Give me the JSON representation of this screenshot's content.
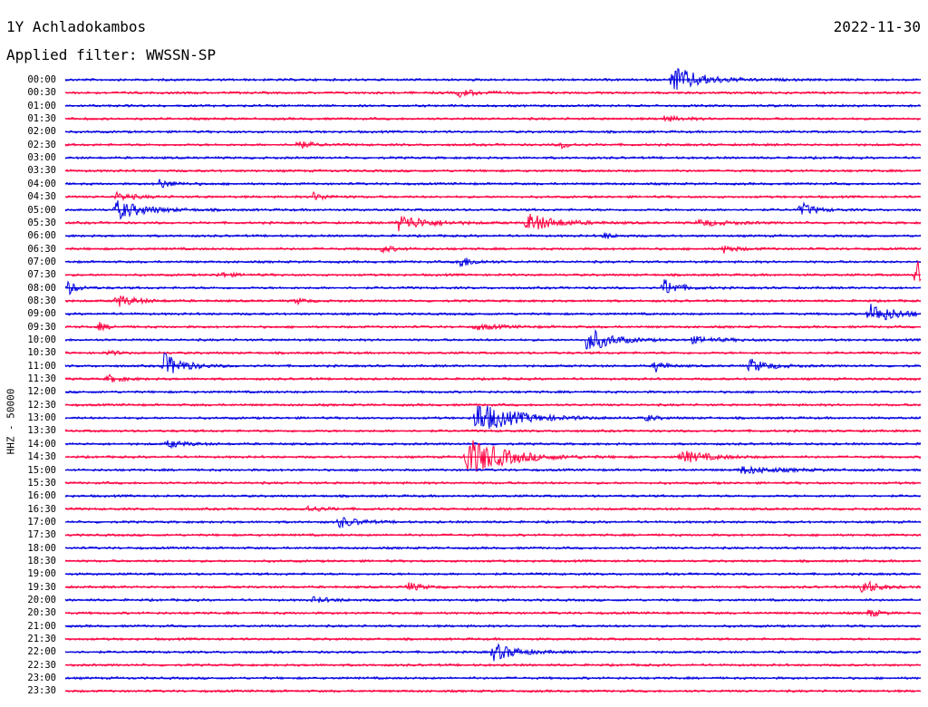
{
  "header": {
    "station": "1Y Achladokambos",
    "date": "2022-11-30",
    "filter": "Applied filter: WWSSN-SP"
  },
  "chart_data": {
    "type": "line",
    "title": "1Y Achladokambos",
    "ylabel": "HHZ - 50000",
    "series_colors": [
      "#0000e0",
      "#ff0040"
    ],
    "rows": [
      "00:00",
      "00:30",
      "01:00",
      "01:30",
      "02:00",
      "02:30",
      "03:00",
      "03:30",
      "04:00",
      "04:30",
      "05:00",
      "05:30",
      "06:00",
      "06:30",
      "07:00",
      "07:30",
      "08:00",
      "08:30",
      "09:00",
      "09:30",
      "10:00",
      "10:30",
      "11:00",
      "11:30",
      "12:00",
      "12:30",
      "13:00",
      "13:30",
      "14:00",
      "14:30",
      "15:00",
      "15:30",
      "16:00",
      "16:30",
      "17:00",
      "17:30",
      "18:00",
      "18:30",
      "19:00",
      "19:30",
      "20:00",
      "20:30",
      "21:00",
      "21:30",
      "22:00",
      "22:30",
      "23:00",
      "23:30"
    ],
    "events": [
      {
        "row": "00:00",
        "pos": 0.71,
        "amp": 2.2,
        "dur": 0.03
      },
      {
        "row": "00:30",
        "pos": 0.46,
        "amp": 0.6,
        "dur": 0.02
      },
      {
        "row": "01:30",
        "pos": 0.7,
        "amp": 0.4,
        "dur": 0.02
      },
      {
        "row": "02:30",
        "pos": 0.27,
        "amp": 0.7,
        "dur": 0.015
      },
      {
        "row": "02:30",
        "pos": 0.58,
        "amp": 0.5,
        "dur": 0.01
      },
      {
        "row": "04:00",
        "pos": 0.11,
        "amp": 0.7,
        "dur": 0.015
      },
      {
        "row": "04:30",
        "pos": 0.06,
        "amp": 0.6,
        "dur": 0.02
      },
      {
        "row": "04:30",
        "pos": 0.29,
        "amp": 0.6,
        "dur": 0.015
      },
      {
        "row": "05:00",
        "pos": 0.06,
        "amp": 1.5,
        "dur": 0.03
      },
      {
        "row": "05:00",
        "pos": 0.86,
        "amp": 1.1,
        "dur": 0.015
      },
      {
        "row": "05:30",
        "pos": 0.39,
        "amp": 1.3,
        "dur": 0.03
      },
      {
        "row": "05:30",
        "pos": 0.54,
        "amp": 1.5,
        "dur": 0.03
      },
      {
        "row": "05:30",
        "pos": 0.74,
        "amp": 0.5,
        "dur": 0.03
      },
      {
        "row": "06:00",
        "pos": 0.63,
        "amp": 0.5,
        "dur": 0.01
      },
      {
        "row": "06:30",
        "pos": 0.37,
        "amp": 0.5,
        "dur": 0.015
      },
      {
        "row": "06:30",
        "pos": 0.77,
        "amp": 0.6,
        "dur": 0.015
      },
      {
        "row": "07:00",
        "pos": 0.46,
        "amp": 1.0,
        "dur": 0.015
      },
      {
        "row": "07:30",
        "pos": 0.995,
        "amp": 2.6,
        "dur": 0.01
      },
      {
        "row": "07:30",
        "pos": 0.18,
        "amp": 0.4,
        "dur": 0.015
      },
      {
        "row": "08:00",
        "pos": 0.7,
        "amp": 1.4,
        "dur": 0.015
      },
      {
        "row": "08:00",
        "pos": 0.002,
        "amp": 1.2,
        "dur": 0.01
      },
      {
        "row": "08:30",
        "pos": 0.06,
        "amp": 1.0,
        "dur": 0.02
      },
      {
        "row": "08:30",
        "pos": 0.27,
        "amp": 0.5,
        "dur": 0.01
      },
      {
        "row": "09:00",
        "pos": 0.94,
        "amp": 1.6,
        "dur": 0.03
      },
      {
        "row": "09:30",
        "pos": 0.04,
        "amp": 0.6,
        "dur": 0.01
      },
      {
        "row": "09:30",
        "pos": 0.48,
        "amp": 0.4,
        "dur": 0.03
      },
      {
        "row": "10:00",
        "pos": 0.61,
        "amp": 2.0,
        "dur": 0.025
      },
      {
        "row": "10:00",
        "pos": 0.73,
        "amp": 0.5,
        "dur": 0.03
      },
      {
        "row": "10:30",
        "pos": 0.05,
        "amp": 0.4,
        "dur": 0.01
      },
      {
        "row": "11:00",
        "pos": 0.115,
        "amp": 2.0,
        "dur": 0.02
      },
      {
        "row": "11:00",
        "pos": 0.69,
        "amp": 1.0,
        "dur": 0.01
      },
      {
        "row": "11:00",
        "pos": 0.8,
        "amp": 1.1,
        "dur": 0.02
      },
      {
        "row": "11:30",
        "pos": 0.05,
        "amp": 0.6,
        "dur": 0.015
      },
      {
        "row": "13:00",
        "pos": 0.48,
        "amp": 2.6,
        "dur": 0.04
      },
      {
        "row": "13:00",
        "pos": 0.68,
        "amp": 0.5,
        "dur": 0.01
      },
      {
        "row": "14:00",
        "pos": 0.12,
        "amp": 0.6,
        "dur": 0.02
      },
      {
        "row": "14:30",
        "pos": 0.47,
        "amp": 3.2,
        "dur": 0.04
      },
      {
        "row": "14:30",
        "pos": 0.72,
        "amp": 1.0,
        "dur": 0.03
      },
      {
        "row": "15:00",
        "pos": 0.79,
        "amp": 0.6,
        "dur": 0.04
      },
      {
        "row": "16:30",
        "pos": 0.28,
        "amp": 0.5,
        "dur": 0.02
      },
      {
        "row": "17:00",
        "pos": 0.32,
        "amp": 0.9,
        "dur": 0.02
      },
      {
        "row": "19:30",
        "pos": 0.4,
        "amp": 0.7,
        "dur": 0.015
      },
      {
        "row": "19:30",
        "pos": 0.93,
        "amp": 1.4,
        "dur": 0.015
      },
      {
        "row": "20:00",
        "pos": 0.29,
        "amp": 0.4,
        "dur": 0.02
      },
      {
        "row": "20:30",
        "pos": 0.94,
        "amp": 0.7,
        "dur": 0.01
      },
      {
        "row": "22:00",
        "pos": 0.5,
        "amp": 1.4,
        "dur": 0.025
      }
    ]
  }
}
